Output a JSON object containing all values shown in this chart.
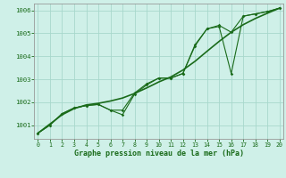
{
  "title": "Graphe pression niveau de la mer (hPa)",
  "bg_color": "#cff0e8",
  "line_color": "#1a6b1a",
  "grid_color": "#a8d8cc",
  "x_values": [
    0,
    1,
    2,
    3,
    4,
    5,
    6,
    7,
    8,
    9,
    10,
    11,
    12,
    13,
    14,
    15,
    16,
    17,
    18,
    19,
    20
  ],
  "y_line1": [
    1000.65,
    1001.0,
    1001.5,
    1001.75,
    1001.85,
    1001.9,
    1001.65,
    1001.45,
    1002.35,
    1002.75,
    1003.05,
    1003.05,
    1003.25,
    1004.45,
    1005.2,
    1005.3,
    1003.25,
    1005.75,
    1005.85,
    1005.95,
    1006.1
  ],
  "y_line2": [
    1000.65,
    1001.0,
    1001.5,
    1001.75,
    1001.85,
    1001.9,
    1001.65,
    1001.65,
    1002.4,
    1002.8,
    1003.05,
    1003.05,
    1003.25,
    1004.5,
    1005.2,
    1005.35,
    1005.05,
    1005.75,
    1005.85,
    1005.95,
    1006.1
  ],
  "y_smooth": [
    1000.65,
    1001.05,
    1001.45,
    1001.72,
    1001.88,
    1001.95,
    1002.05,
    1002.18,
    1002.38,
    1002.62,
    1002.88,
    1003.1,
    1003.4,
    1003.78,
    1004.22,
    1004.65,
    1005.05,
    1005.38,
    1005.65,
    1005.88,
    1006.1
  ],
  "ylim": [
    1000.4,
    1006.3
  ],
  "xlim": [
    -0.3,
    20.3
  ],
  "yticks": [
    1001,
    1002,
    1003,
    1004,
    1005,
    1006
  ],
  "xticks": [
    0,
    1,
    2,
    3,
    4,
    5,
    6,
    7,
    8,
    9,
    10,
    11,
    12,
    13,
    14,
    15,
    16,
    17,
    18,
    19,
    20
  ]
}
